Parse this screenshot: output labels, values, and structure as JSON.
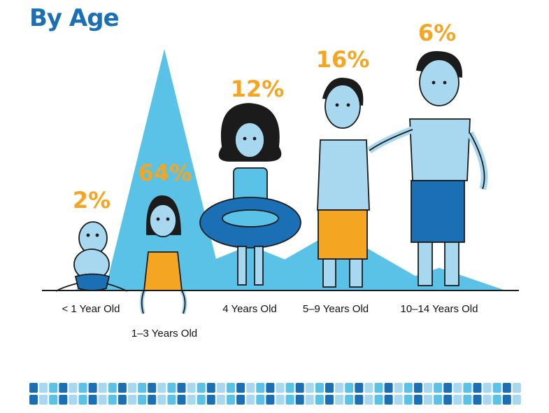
{
  "title": "By Age",
  "chart_data": {
    "type": "bar",
    "categories": [
      "< 1 Year Old",
      "1–3 Years Old",
      "4 Years Old",
      "5–9 Years Old",
      "10–14 Years Old"
    ],
    "values": [
      2,
      64,
      12,
      16,
      6
    ],
    "value_labels": [
      "2%",
      "64%",
      "12%",
      "16%",
      "6%"
    ],
    "unit": "%",
    "ylim": [
      0,
      64
    ]
  },
  "colors": {
    "title": "#1a6fb5",
    "peak": "#5bc2e7",
    "value_label": "#f4a623",
    "skin": "#a8d8f0",
    "trunks_blue": "#1a6fb5",
    "trunks_orange": "#f4a623",
    "tiles": [
      "#1a6fb5",
      "#5bc2e7",
      "#a8d8f0"
    ]
  },
  "icons": [
    "baby-icon",
    "toddler-icon",
    "girl-with-float-icon",
    "boy-icon",
    "teen-icon"
  ]
}
